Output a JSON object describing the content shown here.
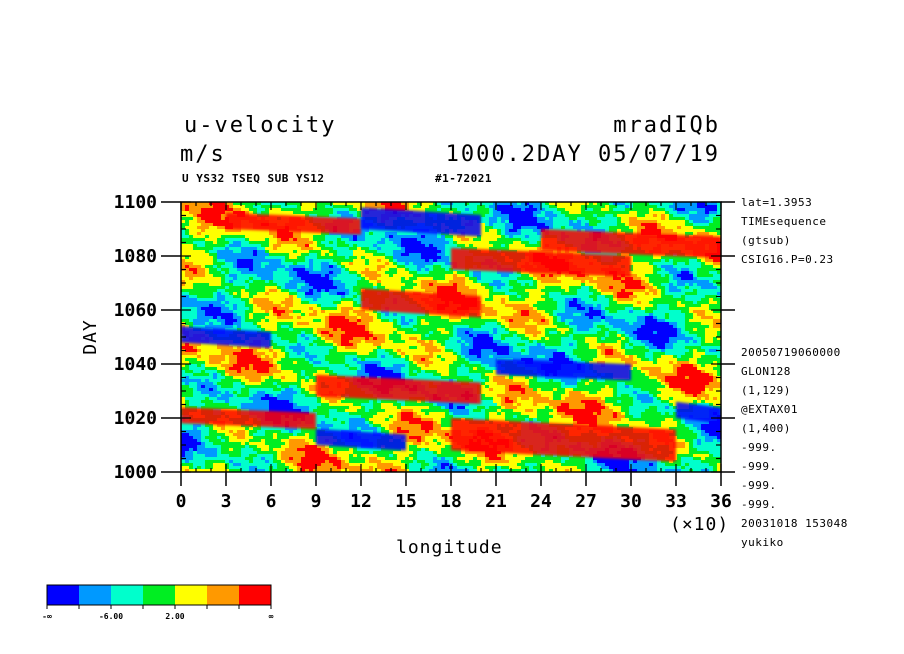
{
  "header": {
    "title_left": "u-velocity",
    "units": "m/s",
    "title_right": "mradIQb",
    "time_label": "1000.2DAY 05/07/19",
    "sub_left": "U YS32 TSEQ SUB YS12",
    "sub_right": "#1-72021"
  },
  "right_annotations_top": [
    "lat=1.3953",
    "TIMEsequence",
    "(gtsub)",
    "CSIG16.P=0.23"
  ],
  "right_annotations_bottom": [
    "20050719060000",
    "GLON128",
    "(1,129)",
    "@EXTAX01",
    "(1,400)",
    "-999.",
    "-999.",
    "-999.",
    "-999.",
    "20031018 153048",
    "yukiko"
  ],
  "colorbar": {
    "colors": [
      "#0000ff",
      "#0099ff",
      "#00ffcc",
      "#00ee22",
      "#ffff00",
      "#ff9900",
      "#ff0000"
    ],
    "labels": [
      "-∞",
      "-6.00",
      "2.00",
      "∞"
    ]
  },
  "chart_data": {
    "type": "heatmap",
    "title": "u-velocity",
    "xlabel": "longitude",
    "ylabel": "DAY",
    "x_multiplier_label": "(×10)",
    "xlim": [
      0,
      36
    ],
    "ylim": [
      1000,
      1100
    ],
    "x_ticks": [
      0,
      3,
      6,
      9,
      12,
      15,
      18,
      21,
      24,
      27,
      30,
      33,
      36
    ],
    "y_ticks": [
      1000,
      1020,
      1040,
      1060,
      1080,
      1100
    ],
    "color_levels": [
      "-∞",
      "-6.00",
      "2.00",
      "∞"
    ],
    "features": [
      {
        "level": "high",
        "x": [
          3,
          12
        ],
        "y": [
          1090,
          1096
        ]
      },
      {
        "level": "high",
        "x": [
          12,
          20
        ],
        "y": [
          1060,
          1068
        ]
      },
      {
        "level": "high",
        "x": [
          18,
          30
        ],
        "y": [
          1075,
          1083
        ]
      },
      {
        "level": "high",
        "x": [
          24,
          36
        ],
        "y": [
          1082,
          1090
        ]
      },
      {
        "level": "high",
        "x": [
          9,
          20
        ],
        "y": [
          1028,
          1036
        ]
      },
      {
        "level": "high",
        "x": [
          0,
          9
        ],
        "y": [
          1018,
          1024
        ]
      },
      {
        "level": "high",
        "x": [
          18,
          33
        ],
        "y": [
          1008,
          1020
        ]
      },
      {
        "level": "low",
        "x": [
          12,
          20
        ],
        "y": [
          1090,
          1098
        ]
      },
      {
        "level": "low",
        "x": [
          21,
          30
        ],
        "y": [
          1036,
          1042
        ]
      },
      {
        "level": "low",
        "x": [
          33,
          36
        ],
        "y": [
          1020,
          1026
        ]
      },
      {
        "level": "low",
        "x": [
          0,
          6
        ],
        "y": [
          1048,
          1054
        ]
      },
      {
        "level": "low",
        "x": [
          9,
          15
        ],
        "y": [
          1010,
          1016
        ]
      }
    ]
  }
}
